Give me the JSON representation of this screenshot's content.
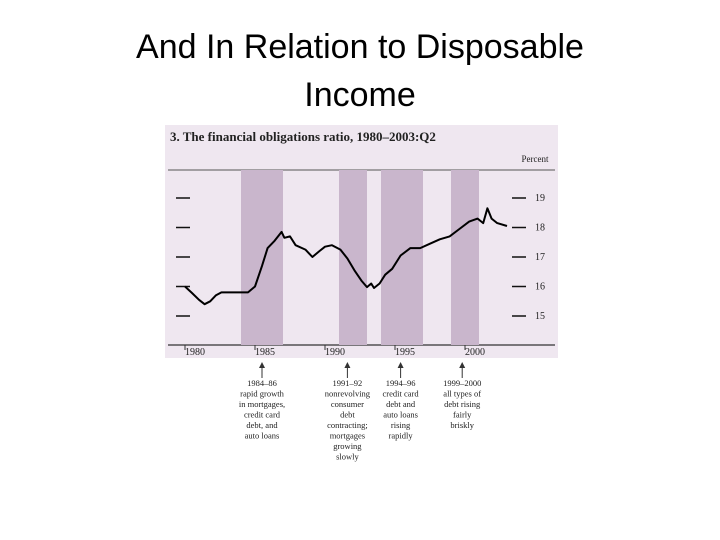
{
  "slide": {
    "title_lines": [
      "And In Relation to Disposable",
      "Income"
    ]
  },
  "chart_data": {
    "type": "line",
    "title": "3.  The financial obligations ratio, 1980–2003:Q2",
    "y_unit_label": "Percent",
    "color": "#000000",
    "band_color": "#c9b6cc",
    "x": [
      1980.0,
      1980.5,
      1981.0,
      1981.4,
      1981.8,
      1982.2,
      1982.6,
      1983.4,
      1984.5,
      1985.0,
      1985.5,
      1985.9,
      1986.4,
      1986.9,
      1987.1,
      1987.5,
      1987.9,
      1988.6,
      1989.1,
      1989.6,
      1990.0,
      1990.5,
      1991.1,
      1991.6,
      1992.1,
      1992.6,
      1993.0,
      1993.3,
      1993.5,
      1993.9,
      1994.3,
      1994.8,
      1995.4,
      1996.1,
      1996.8,
      1997.5,
      1998.2,
      1998.9,
      1999.6,
      2000.3,
      2000.9,
      2001.3,
      2001.6,
      2001.9,
      2002.3,
      2003.0
    ],
    "values": [
      16.0,
      15.78,
      15.55,
      15.4,
      15.5,
      15.7,
      15.8,
      15.8,
      15.8,
      16.0,
      16.7,
      17.3,
      17.55,
      17.85,
      17.65,
      17.7,
      17.4,
      17.25,
      17.0,
      17.2,
      17.35,
      17.4,
      17.25,
      16.95,
      16.55,
      16.2,
      15.98,
      16.1,
      15.95,
      16.1,
      16.4,
      16.6,
      17.05,
      17.3,
      17.3,
      17.45,
      17.6,
      17.7,
      17.95,
      18.2,
      18.3,
      18.15,
      18.65,
      18.3,
      18.15,
      18.05
    ],
    "xlim": [
      1979,
      2006
    ],
    "ylim": [
      14,
      20
    ],
    "xticks": [
      1980,
      1985,
      1990,
      1995,
      2000
    ],
    "yticks": [
      15,
      16,
      17,
      18,
      19
    ],
    "bands": [
      [
        1984,
        1987
      ],
      [
        1991,
        1993
      ],
      [
        1994,
        1997
      ],
      [
        1999,
        2001
      ]
    ],
    "annotations": [
      {
        "x": 1985.5,
        "lines": [
          "1984–86",
          "rapid growth",
          "in mortgages,",
          "credit card",
          "debt, and",
          "auto loans"
        ]
      },
      {
        "x": 1991.6,
        "lines": [
          "1991–92",
          "nonrevolving",
          "consumer",
          "debt",
          "contracting;",
          "mortgages",
          "growing",
          "slowly"
        ]
      },
      {
        "x": 1995.4,
        "lines": [
          "1994–96",
          "credit card",
          "debt and",
          "auto loans",
          "rising",
          "rapidly"
        ]
      },
      {
        "x": 1999.8,
        "lines": [
          "1999–2000",
          "all types of",
          "debt rising",
          "fairly",
          "briskly"
        ]
      }
    ]
  }
}
